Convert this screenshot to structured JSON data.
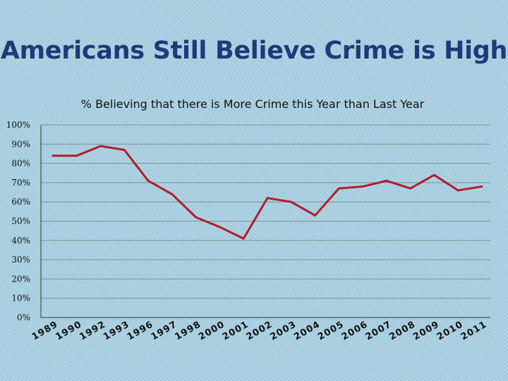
{
  "slide": {
    "title": "Americans Still Believe Crime is High"
  },
  "colors": {
    "series": "#b01e2a",
    "title": "#1f3a7a"
  },
  "chart_data": {
    "type": "line",
    "title": "% Believing that there is More Crime this Year than Last Year",
    "xlabel": "",
    "ylabel": "",
    "ylim": [
      0,
      100
    ],
    "yticks": [
      "0%",
      "10%",
      "20%",
      "30%",
      "40%",
      "50%",
      "60%",
      "70%",
      "80%",
      "90%",
      "100%"
    ],
    "grid": true,
    "legend": "none",
    "categories": [
      "1989",
      "1990",
      "1992",
      "1993",
      "1996",
      "1997",
      "1998",
      "2000",
      "2001",
      "2002",
      "2003",
      "2004",
      "2005",
      "2006",
      "2007",
      "2008",
      "2009",
      "2010",
      "2011"
    ],
    "series": [
      {
        "values": [
          84,
          84,
          89,
          87,
          71,
          64,
          52,
          47,
          41,
          62,
          60,
          53,
          67,
          68,
          71,
          67,
          74,
          66,
          68
        ]
      }
    ]
  }
}
